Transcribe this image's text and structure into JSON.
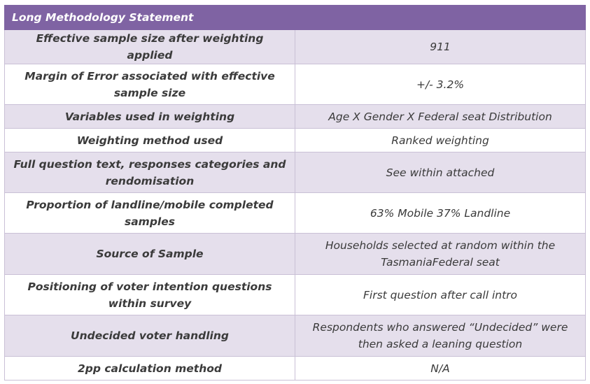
{
  "header": {
    "title": "Long Methodology Statement"
  },
  "rows": [
    {
      "label": "Effective sample size after weighting applied",
      "value": "911"
    },
    {
      "label": "Margin of Error associated with effective sample size",
      "value": "+/- 3.2%"
    },
    {
      "label": "Variables used in weighting",
      "value": "Age X Gender X Federal seat Distribution"
    },
    {
      "label": "Weighting method used",
      "value": "Ranked weighting"
    },
    {
      "label": "Full question text, responses categories and rendomisation",
      "value": "See within attached"
    },
    {
      "label": "Proportion of landline/mobile completed samples",
      "value": "63% Mobile 37% Landline"
    },
    {
      "label": "Source of Sample",
      "value": "Households selected at random within the TasmaniaFederal seat"
    },
    {
      "label": "Positioning of voter intention questions within survey",
      "value": "First question after call intro"
    },
    {
      "label": "Undecided voter handling",
      "value": "Respondents who answered “Undecided” were then asked a leaning question"
    },
    {
      "label": "2pp calculation method",
      "value": "N/A"
    }
  ],
  "colors": {
    "header_bg": "#7f63a3",
    "shade_bg": "#e5dfec",
    "border": "#c9c0d6"
  }
}
